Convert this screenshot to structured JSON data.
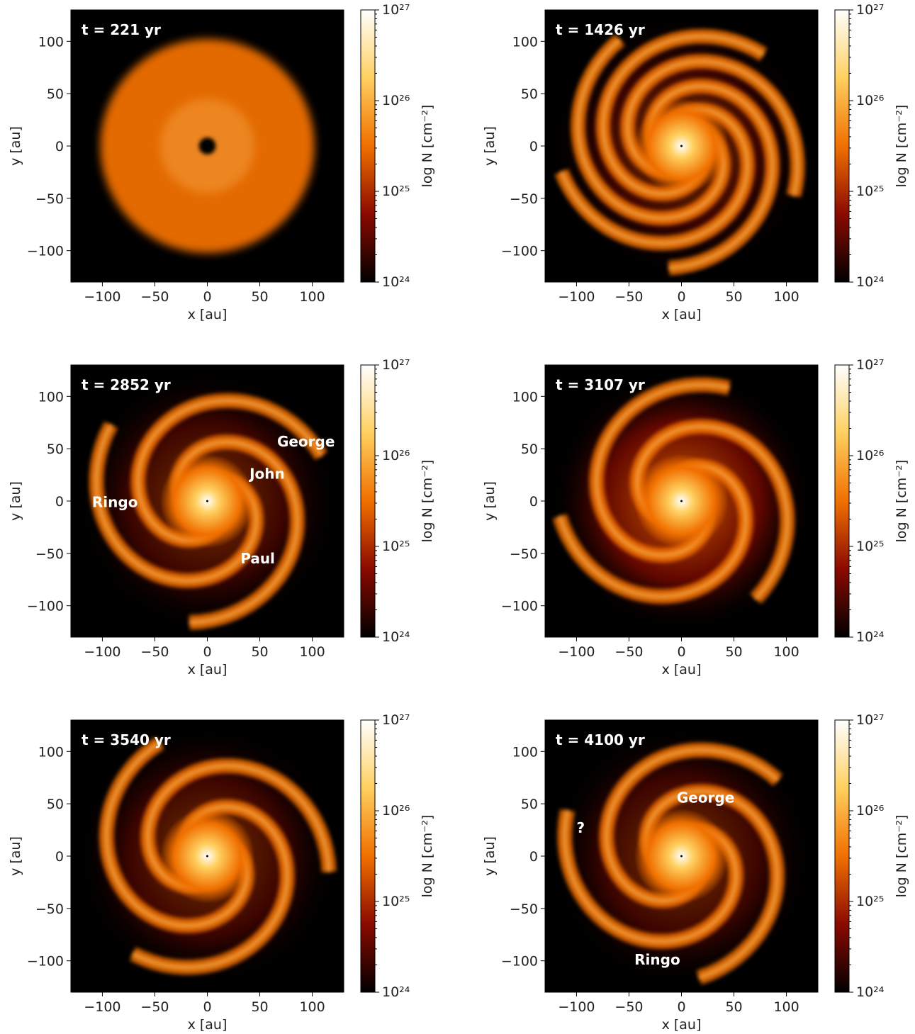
{
  "chart_data": [
    {
      "type": "image",
      "title": "t = 221 yr",
      "xlabel": "x [au]",
      "ylabel": "y [au]",
      "xlim": [
        -130,
        130
      ],
      "ylim": [
        -130,
        130
      ],
      "xticks": [
        {
          "value": -100,
          "label": "−100"
        },
        {
          "value": -50,
          "label": "−50"
        },
        0,
        50,
        100
      ],
      "yticks": [
        {
          "value": -100,
          "label": "−100"
        },
        {
          "value": -50,
          "label": "−50"
        },
        0,
        50,
        100
      ],
      "colorbar": {
        "label": "log N [cm⁻²]",
        "log": true,
        "clim": [
          1e+24,
          1e+27
        ],
        "colors": [
          "#000000",
          "#8b0a00",
          "#f07000",
          "#ffd060",
          "#ffffff"
        ],
        "ticks": [
          {
            "value": 1e+24,
            "label": "10²⁴"
          },
          {
            "value": 1e+25,
            "label": "10²⁵"
          },
          {
            "value": 1e+26,
            "label": "10²⁶"
          },
          {
            "value": 1e+27,
            "label": "10²⁷"
          }
        ]
      },
      "annotations": []
    },
    {
      "type": "image",
      "title": "t = 1426 yr",
      "xlabel": "x [au]",
      "ylabel": "y [au]",
      "xlim": [
        -130,
        130
      ],
      "ylim": [
        -130,
        130
      ],
      "xticks": [
        {
          "value": -100,
          "label": "−100"
        },
        {
          "value": -50,
          "label": "−50"
        },
        0,
        50,
        100
      ],
      "yticks": [
        {
          "value": -100,
          "label": "−100"
        },
        {
          "value": -50,
          "label": "−50"
        },
        0,
        50,
        100
      ],
      "colorbar": {
        "label": "log N [cm⁻²]",
        "log": true,
        "clim": [
          1e+24,
          1e+27
        ],
        "colors": [
          "#000000",
          "#8b0a00",
          "#f07000",
          "#ffd060",
          "#ffffff"
        ],
        "ticks": [
          {
            "value": 1e+24,
            "label": "10²⁴"
          },
          {
            "value": 1e+25,
            "label": "10²⁵"
          },
          {
            "value": 1e+26,
            "label": "10²⁶"
          },
          {
            "value": 1e+27,
            "label": "10²⁷"
          }
        ]
      },
      "annotations": []
    },
    {
      "type": "image",
      "title": "t = 2852 yr",
      "xlabel": "x [au]",
      "ylabel": "y [au]",
      "xlim": [
        -130,
        130
      ],
      "ylim": [
        -130,
        130
      ],
      "xticks": [
        {
          "value": -100,
          "label": "−100"
        },
        {
          "value": -50,
          "label": "−50"
        },
        0,
        50,
        100
      ],
      "yticks": [
        {
          "value": -100,
          "label": "−100"
        },
        {
          "value": -50,
          "label": "−50"
        },
        0,
        50,
        100
      ],
      "colorbar": {
        "label": "log N [cm⁻²]",
        "log": true,
        "clim": [
          1e+24,
          1e+27
        ],
        "colors": [
          "#000000",
          "#8b0a00",
          "#f07000",
          "#ffd060",
          "#ffffff"
        ],
        "ticks": [
          {
            "value": 1e+24,
            "label": "10²⁴"
          },
          {
            "value": 1e+25,
            "label": "10²⁵"
          },
          {
            "value": 1e+26,
            "label": "10²⁶"
          },
          {
            "value": 1e+27,
            "label": "10²⁷"
          }
        ]
      },
      "annotations": [
        {
          "text": "George",
          "x": 94,
          "y": 57
        },
        {
          "text": "John",
          "x": 57,
          "y": 26
        },
        {
          "text": "Ringo",
          "x": -88,
          "y": -1
        },
        {
          "text": "Paul",
          "x": 48,
          "y": -55
        }
      ]
    },
    {
      "type": "image",
      "title": "t = 3107 yr",
      "xlabel": "x [au]",
      "ylabel": "y [au]",
      "xlim": [
        -130,
        130
      ],
      "ylim": [
        -130,
        130
      ],
      "xticks": [
        {
          "value": -100,
          "label": "−100"
        },
        {
          "value": -50,
          "label": "−50"
        },
        0,
        50,
        100
      ],
      "yticks": [
        {
          "value": -100,
          "label": "−100"
        },
        {
          "value": -50,
          "label": "−50"
        },
        0,
        50,
        100
      ],
      "colorbar": {
        "label": "log N [cm⁻²]",
        "log": true,
        "clim": [
          1e+24,
          1e+27
        ],
        "colors": [
          "#000000",
          "#8b0a00",
          "#f07000",
          "#ffd060",
          "#ffffff"
        ],
        "ticks": [
          {
            "value": 1e+24,
            "label": "10²⁴"
          },
          {
            "value": 1e+25,
            "label": "10²⁵"
          },
          {
            "value": 1e+26,
            "label": "10²⁶"
          },
          {
            "value": 1e+27,
            "label": "10²⁷"
          }
        ]
      },
      "annotations": []
    },
    {
      "type": "image",
      "title": "t = 3540 yr",
      "xlabel": "x [au]",
      "ylabel": "y [au]",
      "xlim": [
        -130,
        130
      ],
      "ylim": [
        -130,
        130
      ],
      "xticks": [
        {
          "value": -100,
          "label": "−100"
        },
        {
          "value": -50,
          "label": "−50"
        },
        0,
        50,
        100
      ],
      "yticks": [
        {
          "value": -100,
          "label": "−100"
        },
        {
          "value": -50,
          "label": "−50"
        },
        0,
        50,
        100
      ],
      "colorbar": {
        "label": "log N [cm⁻²]",
        "log": true,
        "clim": [
          1e+24,
          1e+27
        ],
        "colors": [
          "#000000",
          "#8b0a00",
          "#f07000",
          "#ffd060",
          "#ffffff"
        ],
        "ticks": [
          {
            "value": 1e+24,
            "label": "10²⁴"
          },
          {
            "value": 1e+25,
            "label": "10²⁵"
          },
          {
            "value": 1e+26,
            "label": "10²⁶"
          },
          {
            "value": 1e+27,
            "label": "10²⁷"
          }
        ]
      },
      "annotations": []
    },
    {
      "type": "image",
      "title": "t = 4100 yr",
      "xlabel": "x [au]",
      "ylabel": "y [au]",
      "xlim": [
        -130,
        130
      ],
      "ylim": [
        -130,
        130
      ],
      "xticks": [
        {
          "value": -100,
          "label": "−100"
        },
        {
          "value": -50,
          "label": "−50"
        },
        0,
        50,
        100
      ],
      "yticks": [
        {
          "value": -100,
          "label": "−100"
        },
        {
          "value": -50,
          "label": "−50"
        },
        0,
        50,
        100
      ],
      "colorbar": {
        "label": "log N [cm⁻²]",
        "log": true,
        "clim": [
          1e+24,
          1e+27
        ],
        "colors": [
          "#000000",
          "#8b0a00",
          "#f07000",
          "#ffd060",
          "#ffffff"
        ],
        "ticks": [
          {
            "value": 1e+24,
            "label": "10²⁴"
          },
          {
            "value": 1e+25,
            "label": "10²⁵"
          },
          {
            "value": 1e+26,
            "label": "10²⁶"
          },
          {
            "value": 1e+27,
            "label": "10²⁷"
          }
        ]
      },
      "annotations": [
        {
          "text": "George",
          "x": 23,
          "y": 56
        },
        {
          "text": "?",
          "x": -96,
          "y": 27
        },
        {
          "text": "Ringo",
          "x": -23,
          "y": -99
        }
      ]
    }
  ]
}
